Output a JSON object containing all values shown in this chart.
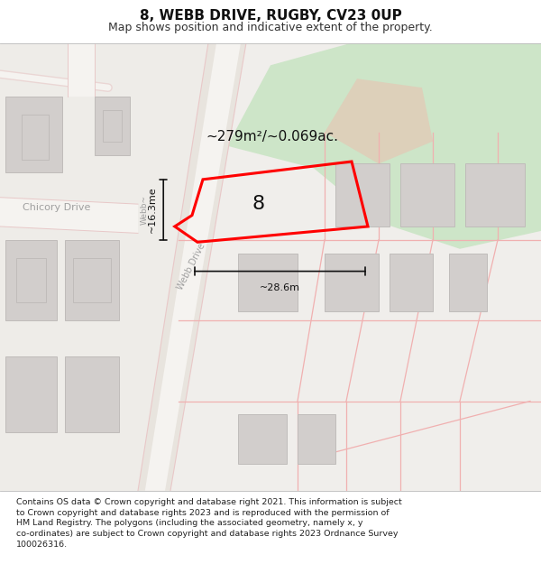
{
  "title": "8, WEBB DRIVE, RUGBY, CV23 0UP",
  "subtitle": "Map shows position and indicative extent of the property.",
  "footer": "Contains OS data © Crown copyright and database right 2021. This information is subject\nto Crown copyright and database rights 2023 and is reproduced with the permission of\nHM Land Registry. The polygons (including the associated geometry, namely x, y\nco-ordinates) are subject to Crown copyright and database rights 2023 Ordnance Survey\n100026316.",
  "area_label": "~279m²/~0.069ac.",
  "width_label": "~28.6m",
  "height_label": "~16.3me",
  "property_number": "8",
  "map_bg": "#f0eeeb",
  "road_surface": "#f5f3f0",
  "road_edge": "#e8c8c8",
  "building_fill": "#d2cecc",
  "building_edge": "#c0bcba",
  "green_fill": "#cde5c8",
  "tan_fill": "#ddd0ba",
  "plot_line": "#f0b0b0",
  "property_edge": "#ff0000",
  "dim_color": "#111111",
  "text_dark": "#111111",
  "street_label": "#a0a0a0",
  "title_fs": 11,
  "subtitle_fs": 9,
  "footer_fs": 6.8,
  "area_fs": 11,
  "dim_fs": 8,
  "prop_num_fs": 16
}
